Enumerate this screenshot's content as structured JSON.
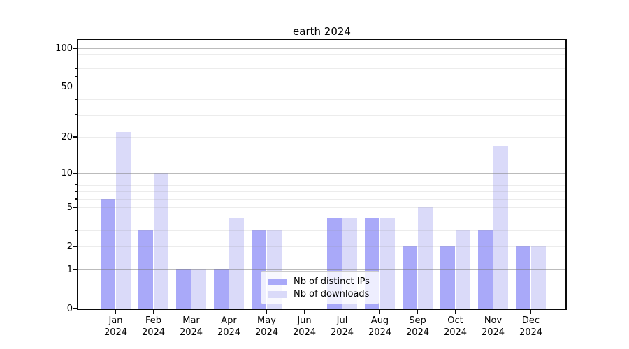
{
  "chart_data": {
    "type": "bar",
    "title": "earth 2024",
    "categories": [
      "Jan 2024",
      "Feb 2024",
      "Mar 2024",
      "Apr 2024",
      "May 2024",
      "Jun 2024",
      "Jul 2024",
      "Aug 2024",
      "Sep 2024",
      "Oct 2024",
      "Nov 2024",
      "Dec 2024"
    ],
    "series": [
      {
        "name": "Nb of distinct IPs",
        "color": "#a9a9f9",
        "values": [
          6,
          3,
          1,
          1,
          3,
          0,
          4,
          4,
          2,
          2,
          3,
          2
        ]
      },
      {
        "name": "Nb of downloads",
        "color": "#dadaf9",
        "values": [
          22,
          10,
          1,
          4,
          3,
          0,
          4,
          4,
          5,
          3,
          17,
          2
        ]
      }
    ],
    "xlabel": "",
    "ylabel": "",
    "yscale": "log1p-base10",
    "ylim": [
      0,
      113
    ],
    "y_ticks": [
      0,
      1,
      2,
      5,
      10,
      20,
      50,
      100
    ],
    "y_minor_ticks": [
      3,
      4,
      6,
      7,
      8,
      9,
      30,
      40,
      60,
      70,
      80,
      90
    ],
    "grid": "horizontal, drawn over bars",
    "legend_position": "inside lower-center"
  },
  "colors": {
    "series_dark": "#a9a9f9",
    "series_light": "#dadaf9",
    "grid_major": "#c0c0c0",
    "grid_minor": "#ececec",
    "spine": "#0a0a0a",
    "background": "#ffffff"
  }
}
